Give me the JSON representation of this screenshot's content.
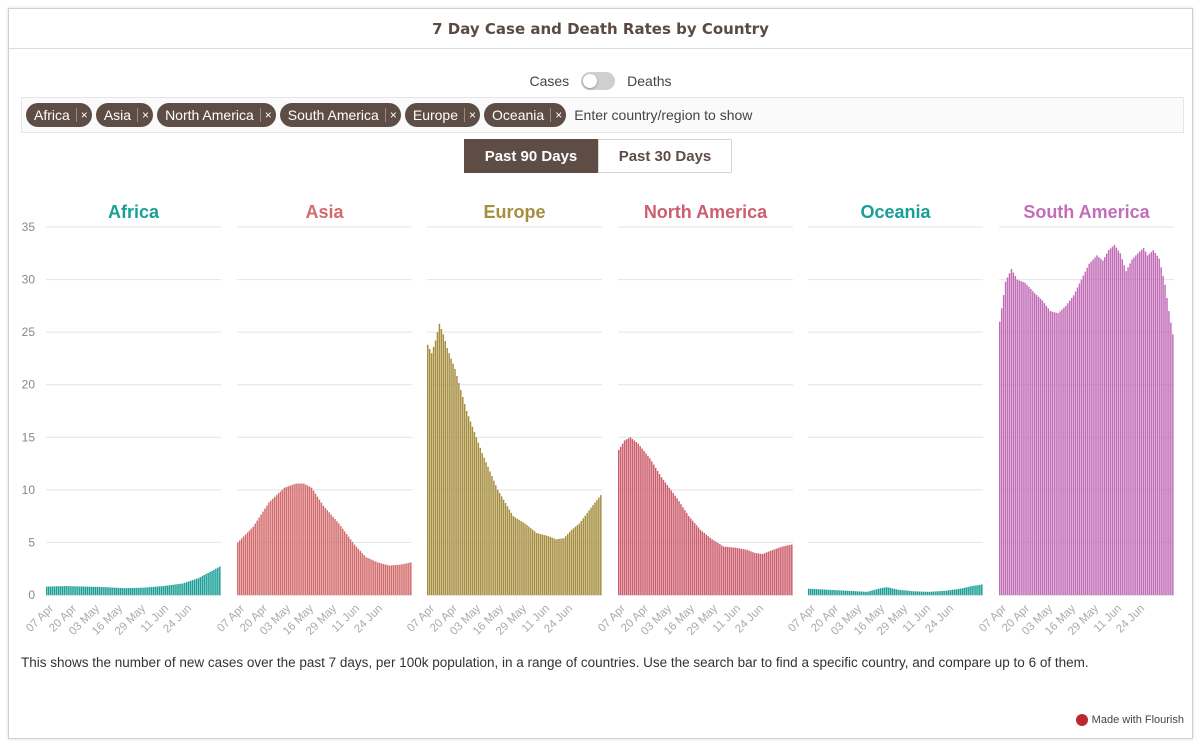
{
  "title": "7 Day Case and Death Rates by Country",
  "toggle": {
    "left_label": "Cases",
    "right_label": "Deaths",
    "state": "Cases"
  },
  "search": {
    "placeholder": "Enter country/region to show",
    "tags": [
      "Africa",
      "Asia",
      "North America",
      "South America",
      "Europe",
      "Oceania"
    ],
    "remove_glyph": "×"
  },
  "tabs": {
    "active": "Past 90 Days",
    "inactive": "Past 30 Days"
  },
  "caption": "This shows the number of new cases over the past 7 days, per 100k population, in a range of countries. Use the search bar to find a specific country, and compare up to 6 of them.",
  "footer": {
    "made_with": "Made with Flourish"
  },
  "chart_data": {
    "type": "bar",
    "y_ticks": [
      0,
      5,
      10,
      15,
      20,
      25,
      30,
      35
    ],
    "ylim": [
      0,
      35
    ],
    "x_tick_labels": [
      "07 Apr",
      "20 Apr",
      "03 May",
      "16 May",
      "29 May",
      "11 Jun",
      "24 Jun"
    ],
    "grid": true,
    "panels": [
      {
        "name": "Africa",
        "color": "#1a9f96",
        "anchors": [
          [
            0,
            0.8
          ],
          [
            10,
            0.85
          ],
          [
            20,
            0.8
          ],
          [
            30,
            0.75
          ],
          [
            40,
            0.65
          ],
          [
            50,
            0.7
          ],
          [
            60,
            0.85
          ],
          [
            70,
            1.1
          ],
          [
            78,
            1.6
          ],
          [
            84,
            2.2
          ],
          [
            89,
            2.7
          ]
        ]
      },
      {
        "name": "Asia",
        "color": "#d36b6c",
        "anchors": [
          [
            0,
            5.0
          ],
          [
            8,
            6.5
          ],
          [
            16,
            8.8
          ],
          [
            24,
            10.2
          ],
          [
            30,
            10.6
          ],
          [
            34,
            10.6
          ],
          [
            38,
            10.2
          ],
          [
            44,
            8.5
          ],
          [
            52,
            6.8
          ],
          [
            60,
            4.8
          ],
          [
            66,
            3.6
          ],
          [
            72,
            3.1
          ],
          [
            78,
            2.8
          ],
          [
            84,
            2.9
          ],
          [
            89,
            3.1
          ]
        ]
      },
      {
        "name": "Europe",
        "color": "#a68e3f",
        "anchors": [
          [
            0,
            23.8
          ],
          [
            2,
            23.0
          ],
          [
            4,
            24.2
          ],
          [
            6,
            25.8
          ],
          [
            8,
            24.8
          ],
          [
            10,
            23.5
          ],
          [
            14,
            21.5
          ],
          [
            20,
            17.5
          ],
          [
            28,
            13.5
          ],
          [
            36,
            10.0
          ],
          [
            44,
            7.5
          ],
          [
            50,
            6.8
          ],
          [
            56,
            5.9
          ],
          [
            62,
            5.6
          ],
          [
            66,
            5.3
          ],
          [
            70,
            5.4
          ],
          [
            74,
            6.2
          ],
          [
            78,
            6.8
          ],
          [
            82,
            7.8
          ],
          [
            86,
            8.8
          ],
          [
            89,
            9.5
          ]
        ]
      },
      {
        "name": "North America",
        "color": "#cc5e6d",
        "anchors": [
          [
            0,
            13.8
          ],
          [
            3,
            14.7
          ],
          [
            6,
            15.0
          ],
          [
            10,
            14.4
          ],
          [
            16,
            13.0
          ],
          [
            22,
            11.2
          ],
          [
            30,
            9.2
          ],
          [
            36,
            7.5
          ],
          [
            42,
            6.2
          ],
          [
            48,
            5.3
          ],
          [
            54,
            4.6
          ],
          [
            60,
            4.5
          ],
          [
            66,
            4.3
          ],
          [
            70,
            4.0
          ],
          [
            74,
            3.9
          ],
          [
            78,
            4.2
          ],
          [
            84,
            4.6
          ],
          [
            89,
            4.8
          ]
        ]
      },
      {
        "name": "Oceania",
        "color": "#1a9f96",
        "anchors": [
          [
            0,
            0.6
          ],
          [
            10,
            0.5
          ],
          [
            20,
            0.4
          ],
          [
            30,
            0.3
          ],
          [
            36,
            0.6
          ],
          [
            40,
            0.75
          ],
          [
            46,
            0.5
          ],
          [
            54,
            0.35
          ],
          [
            62,
            0.3
          ],
          [
            70,
            0.4
          ],
          [
            78,
            0.6
          ],
          [
            84,
            0.85
          ],
          [
            89,
            1.0
          ]
        ]
      },
      {
        "name": "South America",
        "color": "#c26db8",
        "anchors": [
          [
            0,
            26.0
          ],
          [
            3,
            29.8
          ],
          [
            6,
            31.0
          ],
          [
            9,
            30.0
          ],
          [
            13,
            29.7
          ],
          [
            18,
            28.7
          ],
          [
            22,
            28.0
          ],
          [
            26,
            27.0
          ],
          [
            30,
            26.8
          ],
          [
            34,
            27.5
          ],
          [
            38,
            28.5
          ],
          [
            42,
            30.0
          ],
          [
            46,
            31.5
          ],
          [
            50,
            32.3
          ],
          [
            53,
            31.8
          ],
          [
            56,
            32.8
          ],
          [
            59,
            33.3
          ],
          [
            62,
            32.5
          ],
          [
            65,
            30.8
          ],
          [
            68,
            31.9
          ],
          [
            71,
            32.5
          ],
          [
            74,
            33.0
          ],
          [
            76,
            32.3
          ],
          [
            79,
            32.8
          ],
          [
            82,
            32.0
          ],
          [
            85,
            29.5
          ],
          [
            87,
            27.0
          ],
          [
            89,
            24.8
          ]
        ]
      }
    ]
  }
}
